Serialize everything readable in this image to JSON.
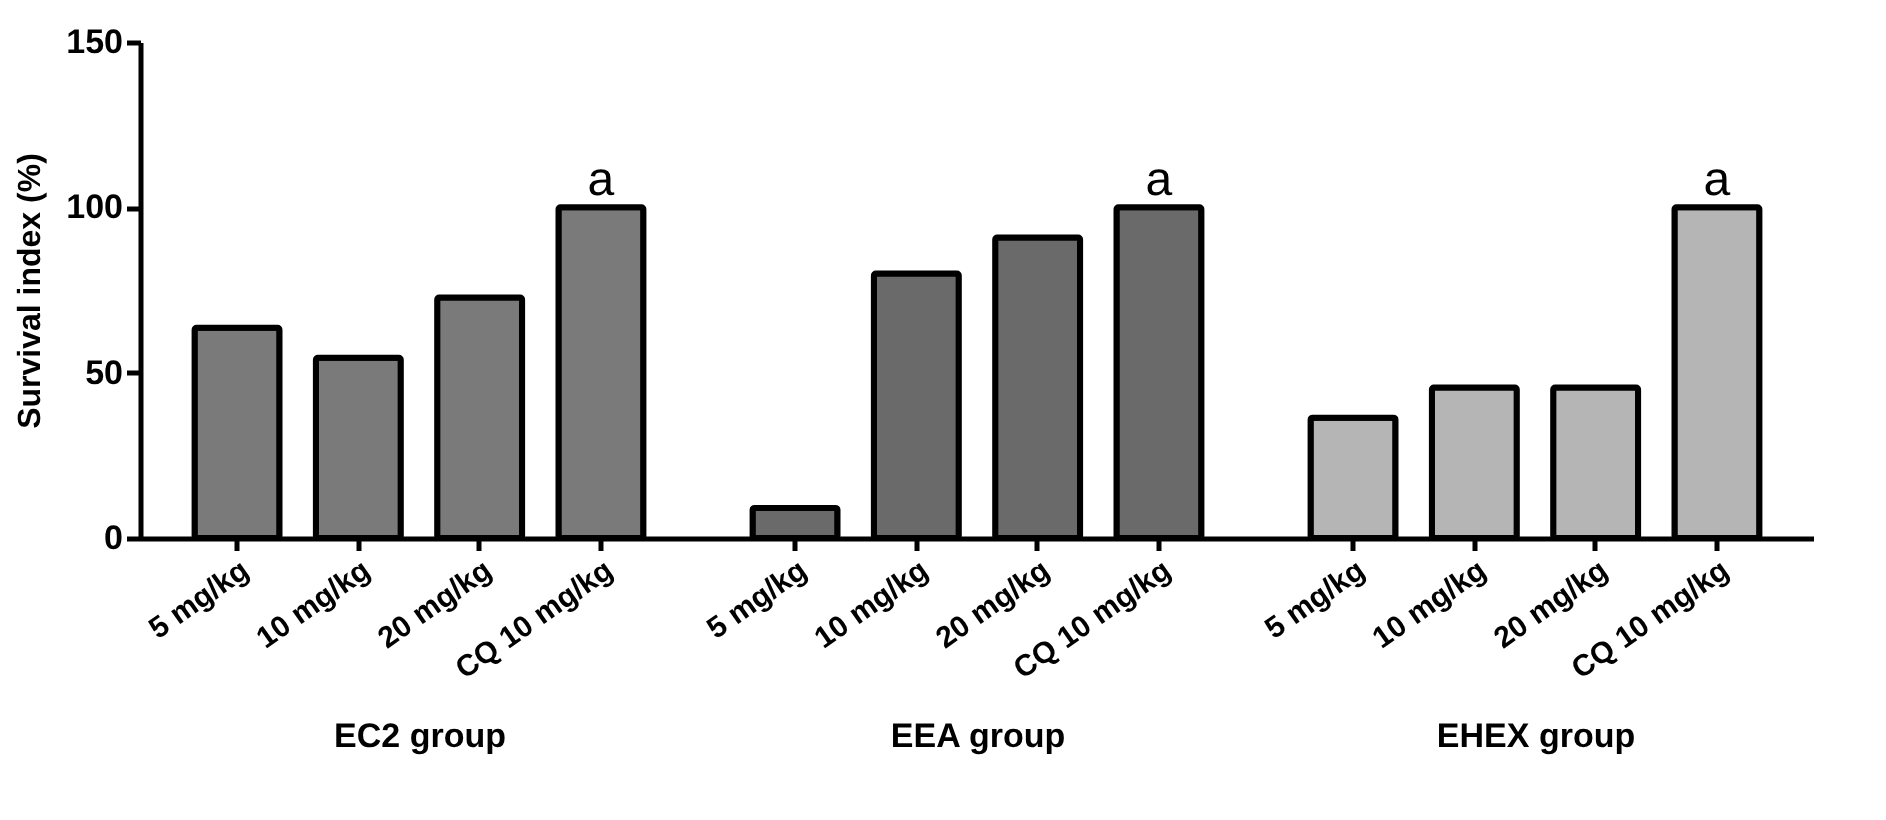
{
  "chart_data": [
    {
      "type": "bar",
      "ylabel": "Survival index (%)",
      "xlabel": "EC2 group",
      "categories": [
        "5 mg/kg",
        "10 mg/kg",
        "20 mg/kg",
        "CQ 10 mg/kg"
      ],
      "values": [
        63.6,
        54.5,
        72.7,
        100
      ],
      "color": "#7a7a7a",
      "ylim": [
        0,
        150
      ],
      "yticks": [
        0,
        50,
        100,
        150
      ],
      "grid": false,
      "annotations": [
        {
          "text": "a",
          "x": "CQ 10 mg/kg",
          "y": 100
        }
      ]
    },
    {
      "type": "bar",
      "xlabel": "EEA group",
      "categories": [
        "5 mg/kg",
        "10 mg/kg",
        "20 mg/kg",
        "CQ 10 mg/kg"
      ],
      "values": [
        9.1,
        80,
        90.9,
        100
      ],
      "color": "#6a6a6a",
      "ylim": [
        0,
        150
      ],
      "tick_labels": "x",
      "annotations": [
        {
          "text": "a",
          "x": "CQ 10 mg/kg",
          "y": 100
        }
      ]
    },
    {
      "type": "bar",
      "xlabel": "EHEX group",
      "categories": [
        "5 mg/kg",
        "10 mg/kg",
        "20 mg/kg",
        "CQ 10 mg/kg"
      ],
      "values": [
        36.4,
        45.5,
        45.5,
        100
      ],
      "color": "#b5b5b5",
      "ylim": [
        0,
        150
      ],
      "tick_labels": "x",
      "annotations": [
        {
          "text": "a",
          "x": "CQ 10 mg/kg",
          "y": 100
        }
      ]
    }
  ]
}
